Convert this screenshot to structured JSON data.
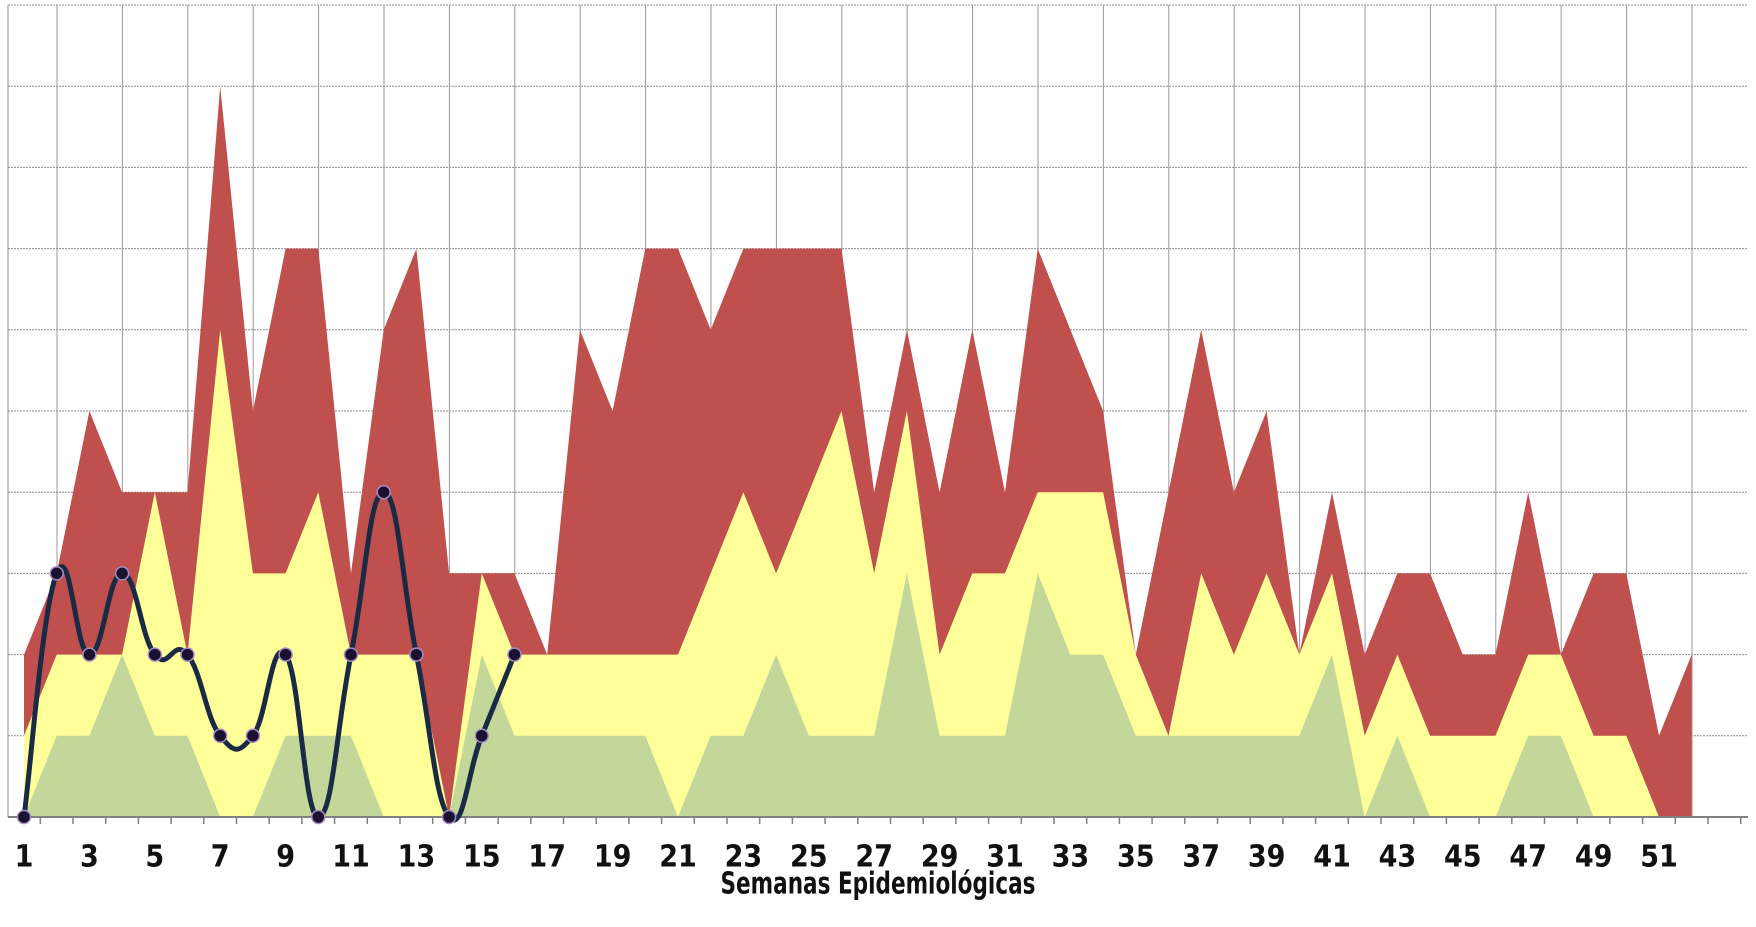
{
  "chart_data": {
    "type": "area",
    "xlabel": "Semanas Epidemiológicas",
    "ylabel": "",
    "title": "",
    "x": [
      1,
      2,
      3,
      4,
      5,
      6,
      7,
      8,
      9,
      10,
      11,
      12,
      13,
      14,
      15,
      16,
      17,
      18,
      19,
      20,
      21,
      22,
      23,
      24,
      25,
      26,
      27,
      28,
      29,
      30,
      31,
      32,
      33,
      34,
      35,
      36,
      37,
      38,
      39,
      40,
      41,
      42,
      43,
      44,
      45,
      46,
      47,
      48,
      49,
      50,
      51,
      52
    ],
    "x_tick_labels": [
      "1",
      "3",
      "5",
      "7",
      "9",
      "11",
      "13",
      "15",
      "17",
      "19",
      "21",
      "23",
      "25",
      "27",
      "29",
      "31",
      "33",
      "35",
      "37",
      "39",
      "41",
      "43",
      "45",
      "47",
      "49",
      "51"
    ],
    "ylim": [
      0,
      10
    ],
    "grid": true,
    "series": [
      {
        "color": "#c0504d",
        "values": [
          2,
          3,
          5,
          4,
          4,
          4,
          9,
          5,
          7,
          7,
          3,
          6,
          7,
          3,
          3,
          3,
          2,
          6,
          5,
          7,
          7,
          6,
          7,
          7,
          7,
          7,
          4,
          6,
          4,
          6,
          4,
          7,
          6,
          5,
          2,
          4,
          6,
          4,
          5,
          2,
          4,
          2,
          3,
          3,
          2,
          2,
          4,
          2,
          3,
          3,
          1,
          2
        ]
      },
      {
        "color": "#ffff99",
        "values": [
          1,
          2,
          2,
          2,
          4,
          2,
          6,
          3,
          3,
          4,
          2,
          2,
          2,
          0,
          3,
          2,
          2,
          2,
          2,
          2,
          2,
          3,
          4,
          3,
          4,
          5,
          3,
          5,
          2,
          3,
          3,
          4,
          4,
          4,
          2,
          1,
          3,
          2,
          3,
          2,
          3,
          1,
          2,
          1,
          1,
          1,
          2,
          2,
          1,
          1,
          0,
          0
        ]
      },
      {
        "color": "#c4d79b",
        "values": [
          0,
          1,
          1,
          2,
          1,
          1,
          0,
          0,
          1,
          1,
          1,
          0,
          0,
          0,
          2,
          1,
          1,
          1,
          1,
          1,
          0,
          1,
          1,
          2,
          1,
          1,
          1,
          3,
          1,
          1,
          1,
          3,
          2,
          2,
          1,
          1,
          1,
          1,
          1,
          1,
          2,
          0,
          1,
          0,
          0,
          0,
          1,
          1,
          0,
          0,
          0,
          0
        ]
      }
    ],
    "line_series": {
      "color": "#1b2a44",
      "marker_color": "#1a1030",
      "x": [
        1,
        2,
        3,
        4,
        5,
        6,
        7,
        8,
        9,
        10,
        11,
        12,
        13,
        14,
        15,
        16
      ],
      "values": [
        0,
        3,
        2,
        3,
        2,
        2,
        1,
        1,
        2,
        0,
        2,
        4,
        2,
        0,
        1,
        2
      ]
    }
  }
}
